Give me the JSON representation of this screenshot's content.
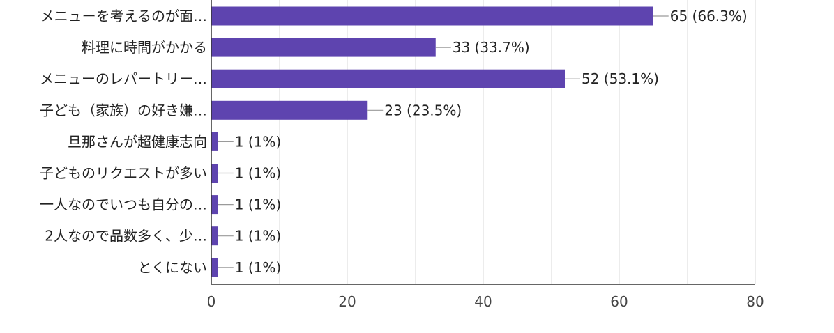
{
  "chart_data": {
    "type": "bar",
    "orientation": "horizontal",
    "categories": [
      "メニューを考えるのが面…",
      "料理に時間がかかる",
      "メニューのレパートリー…",
      "子ども（家族）の好き嫌…",
      "旦那さんが超健康志向",
      "子どものリクエストが多い",
      "一人なのでいつも自分の…",
      "2人なので品数多く、少…",
      "とくにない"
    ],
    "values": [
      65,
      33,
      52,
      23,
      1,
      1,
      1,
      1,
      1
    ],
    "data_labels": [
      "65 (66.3%)",
      "33 (33.7%)",
      "52 (53.1%)",
      "23 (23.5%)",
      "1 (1%)",
      "1 (1%)",
      "1 (1%)",
      "1 (1%)",
      "1 (1%)"
    ],
    "xlim": [
      0,
      80
    ],
    "xticks": [
      "0",
      "20",
      "40",
      "60",
      "80"
    ],
    "grid": true,
    "bar_color": "#5e44af"
  }
}
